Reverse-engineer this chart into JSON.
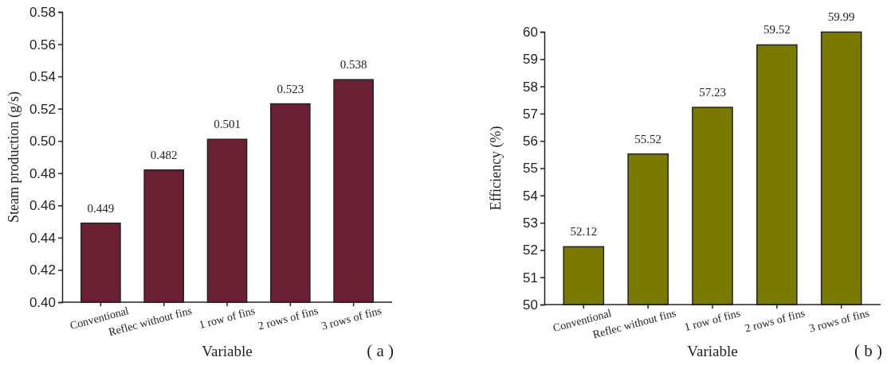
{
  "chart_data": [
    {
      "type": "bar",
      "xlabel": "Variable",
      "ylabel": "Steam production (g/s)",
      "categories": [
        "Conventional",
        "Reflec without fins",
        "1 row of fins",
        "2 rows of fins",
        "3 rows of fins"
      ],
      "values": [
        0.449,
        0.482,
        0.501,
        0.523,
        0.538
      ],
      "color": "#6b1f33",
      "data_labels": true,
      "ylim": [
        0.4,
        0.58
      ],
      "yticks": [
        {
          "value": 0.4,
          "label": "0.40"
        },
        {
          "value": 0.42,
          "label": "0.42"
        },
        {
          "value": 0.44,
          "label": "0.44"
        },
        {
          "value": 0.46,
          "label": "0.46"
        },
        {
          "value": 0.48,
          "label": "0.48"
        },
        {
          "value": 0.5,
          "label": "0.50"
        },
        {
          "value": 0.52,
          "label": "0.52"
        },
        {
          "value": 0.54,
          "label": "0.54"
        },
        {
          "value": 0.56,
          "label": "0.56"
        },
        {
          "value": 0.58,
          "label": "0.58"
        }
      ],
      "annotations": [
        "( a )"
      ]
    },
    {
      "type": "bar",
      "xlabel": "Variable",
      "ylabel": "Efficiency (%)",
      "categories": [
        "Conventional",
        "Reflec without fins",
        "1 row of fins",
        "2 rows of fins",
        "3 rows of fins"
      ],
      "values": [
        52.12,
        55.52,
        57.23,
        59.52,
        59.99
      ],
      "color": "#7a7a00",
      "data_labels": true,
      "ylim": [
        50,
        60
      ],
      "yticks": [
        50,
        51,
        52,
        53,
        54,
        55,
        56,
        57,
        58,
        59,
        60
      ],
      "annotations": [
        "( b )"
      ]
    }
  ]
}
